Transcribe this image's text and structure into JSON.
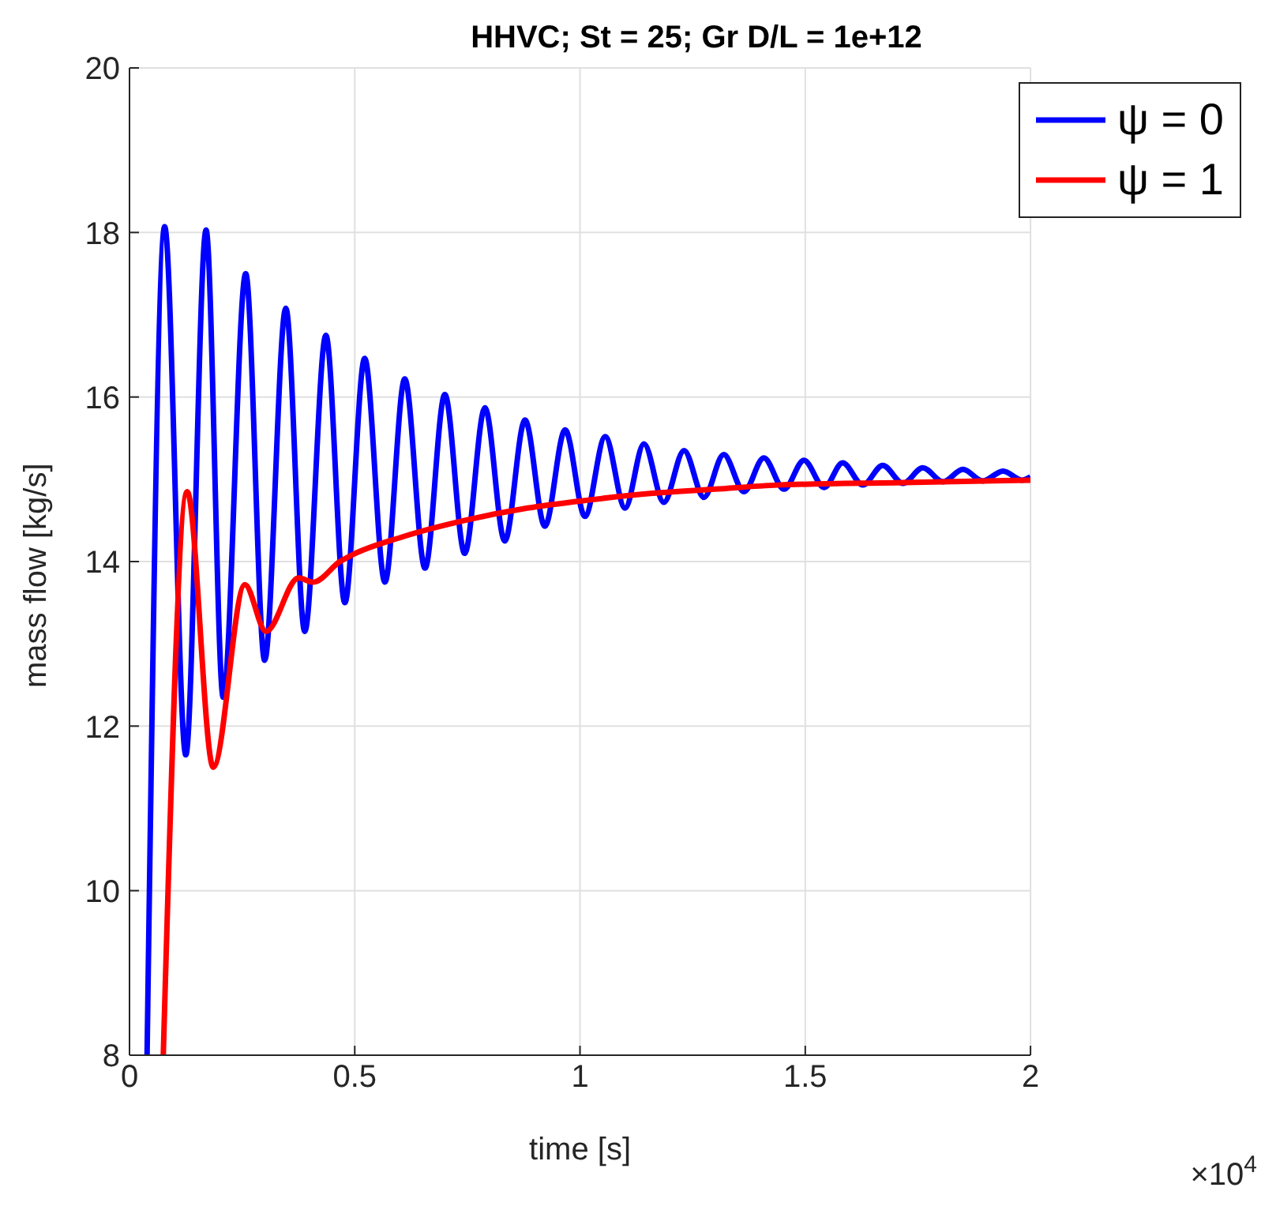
{
  "chart_data": {
    "type": "line",
    "title": "HHVC; St = 25; Gr D/L = 1e+12",
    "xlabel": "time [s]",
    "ylabel": "mass flow [kg/s]",
    "annotations": [
      "×10$^{4}$"
    ],
    "xlim": [
      0,
      2
    ],
    "xticks": [
      0,
      0.5,
      1,
      1.5,
      2
    ],
    "ylim": [
      8,
      20
    ],
    "yticks": [
      8,
      10,
      12,
      14,
      16,
      18,
      20
    ],
    "grid": true,
    "legend": "top right",
    "line_style": "solid",
    "marker": "none",
    "series": [
      {
        "name": "ψ = 0",
        "color": "#0000ff",
        "x": [
          0.039,
          0.078,
          0.125,
          0.17,
          0.208,
          0.258,
          0.3,
          0.347,
          0.389,
          0.436,
          0.478,
          0.522,
          0.567,
          0.611,
          0.656,
          0.7,
          0.744,
          0.789,
          0.833,
          0.878,
          0.922,
          0.967,
          1.011,
          1.056,
          1.1,
          1.142,
          1.186,
          1.231,
          1.275,
          1.319,
          1.364,
          1.408,
          1.453,
          1.497,
          1.542,
          1.583,
          1.628,
          1.672,
          1.717,
          1.761,
          1.806,
          1.85,
          1.894,
          1.939,
          1.981,
          2
        ],
        "values": [
          8,
          18.07,
          11.65,
          18.03,
          12.35,
          17.5,
          12.8,
          17.08,
          13.15,
          16.75,
          13.5,
          16.47,
          13.75,
          16.22,
          13.92,
          16.03,
          14.1,
          15.87,
          14.25,
          15.72,
          14.43,
          15.6,
          14.55,
          15.52,
          14.65,
          15.43,
          14.72,
          15.35,
          14.78,
          15.3,
          14.85,
          15.26,
          14.88,
          15.23,
          14.9,
          15.2,
          14.93,
          15.17,
          14.95,
          15.14,
          14.97,
          15.12,
          14.98,
          15.1,
          14.99,
          15.03
        ]
      },
      {
        "name": "ψ = 1",
        "color": "#ff0000",
        "x": [
          0.075,
          0.128,
          0.186,
          0.256,
          0.303,
          0.375,
          0.408,
          0.467,
          0.494,
          0.606,
          0.744,
          0.883,
          1.022,
          1.161,
          1.3,
          1.439,
          1.717,
          2
        ],
        "values": [
          8,
          14.85,
          11.5,
          13.72,
          13.15,
          13.8,
          13.75,
          14.0,
          14.08,
          14.3,
          14.5,
          14.65,
          14.75,
          14.83,
          14.88,
          14.93,
          14.96,
          14.99
        ]
      }
    ]
  }
}
